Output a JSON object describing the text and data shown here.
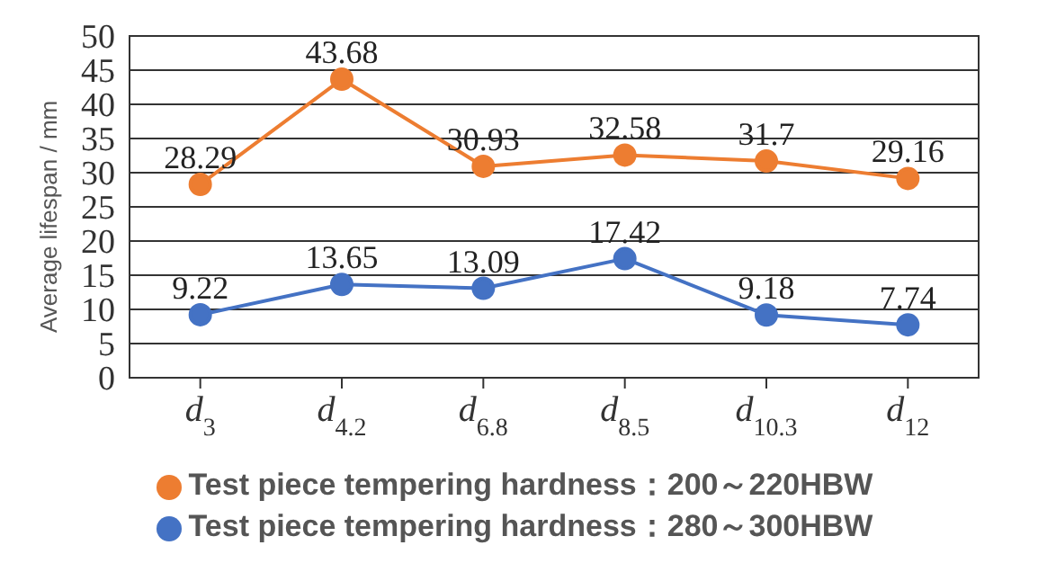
{
  "chart_data": {
    "type": "line",
    "ylabel": "Average lifespan / mm",
    "categories": [
      "d$_{3}$",
      "d$_{4.2}$",
      "d$_{6.8}$",
      "d$_{8.5}$",
      "d$_{10.3}$",
      "d$_{12}$"
    ],
    "series": [
      {
        "name": "Test piece tempering hardness：280～300HBW",
        "color": "#4472c4",
        "values": [
          9.22,
          13.65,
          13.09,
          17.42,
          9.18,
          7.74
        ]
      },
      {
        "name": "Test piece tempering hardness：200～220HBW",
        "color": "#ed7d31",
        "values": [
          28.29,
          43.68,
          30.93,
          32.58,
          31.7,
          29.16
        ]
      }
    ],
    "ylim": [
      0,
      50
    ],
    "yticks": [
      0,
      5,
      10,
      15,
      20,
      25,
      30,
      35,
      40,
      45,
      50
    ],
    "grid": "y",
    "legend": "bottom",
    "marker": "circle",
    "line_style": "solid",
    "data_labels": true
  }
}
